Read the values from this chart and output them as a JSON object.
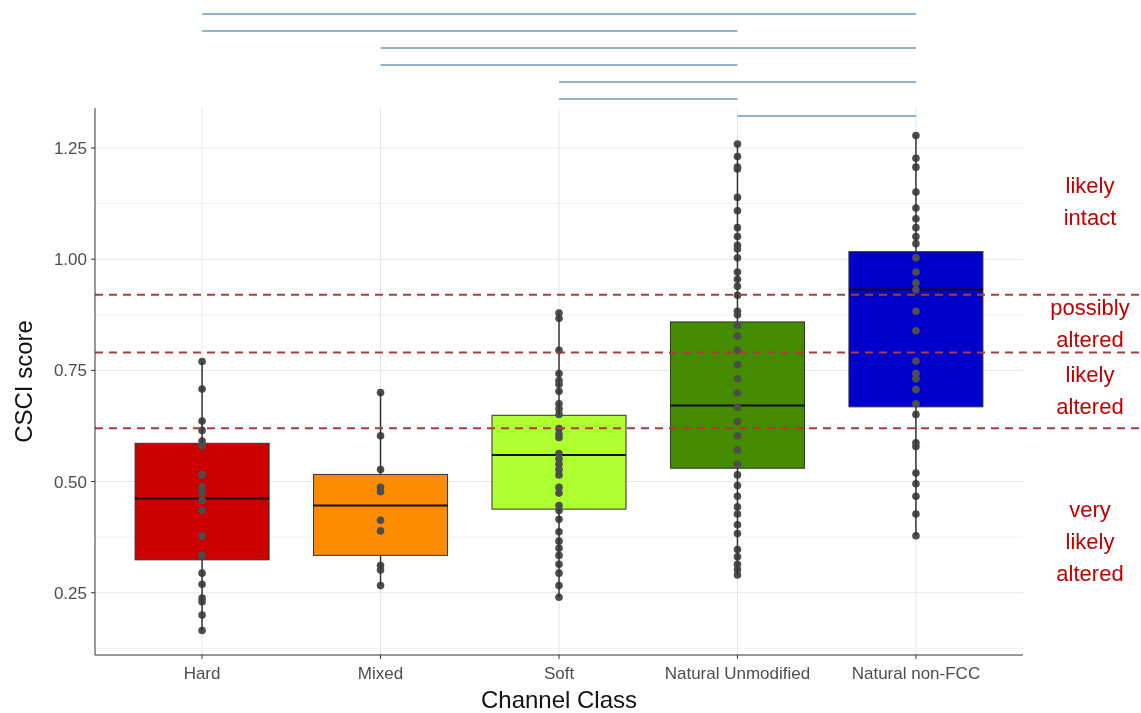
{
  "chart_data": {
    "type": "box",
    "xlabel": "Channel Class",
    "ylabel": "CSCI score",
    "categories": [
      "Hard",
      "Mixed",
      "Soft",
      "Natural Unmodified",
      "Natural non-FCC"
    ],
    "colors": [
      "#cc0000",
      "#ff8c00",
      "#adff2f",
      "#458b00",
      "#0000cd"
    ],
    "boxes": [
      {
        "low": 0.165,
        "q1": 0.324,
        "median": 0.462,
        "q3": 0.586,
        "high": 0.77
      },
      {
        "low": 0.266,
        "q1": 0.334,
        "median": 0.446,
        "q3": 0.516,
        "high": 0.7
      },
      {
        "low": 0.24,
        "q1": 0.438,
        "median": 0.56,
        "q3": 0.649,
        "high": 0.879
      },
      {
        "low": 0.29,
        "q1": 0.53,
        "median": 0.671,
        "q3": 0.859,
        "high": 1.259
      },
      {
        "low": 0.378,
        "q1": 0.668,
        "median": 0.932,
        "q3": 1.017,
        "high": 1.278
      }
    ],
    "series": [
      {
        "type": "scatter",
        "color": "#4d4d4d",
        "x": [
          "Hard",
          "Hard",
          "Hard",
          "Hard",
          "Hard",
          "Hard",
          "Hard",
          "Hard",
          "Hard",
          "Hard",
          "Hard",
          "Hard",
          "Hard",
          "Hard",
          "Hard",
          "Hard",
          "Hard",
          "Hard",
          "Hard",
          "Mixed",
          "Mixed",
          "Mixed",
          "Mixed",
          "Mixed",
          "Mixed",
          "Mixed",
          "Mixed",
          "Mixed",
          "Mixed",
          "Soft",
          "Soft",
          "Soft",
          "Soft",
          "Soft",
          "Soft",
          "Soft",
          "Soft",
          "Soft",
          "Soft",
          "Soft",
          "Soft",
          "Soft",
          "Soft",
          "Soft",
          "Soft",
          "Soft",
          "Soft",
          "Soft",
          "Soft",
          "Soft",
          "Soft",
          "Soft",
          "Soft",
          "Soft",
          "Soft",
          "Soft",
          "Soft",
          "Soft",
          "Soft",
          "Soft",
          "Natural Unmodified",
          "Natural Unmodified",
          "Natural Unmodified",
          "Natural Unmodified",
          "Natural Unmodified",
          "Natural Unmodified",
          "Natural Unmodified",
          "Natural Unmodified",
          "Natural Unmodified",
          "Natural Unmodified",
          "Natural Unmodified",
          "Natural Unmodified",
          "Natural Unmodified",
          "Natural Unmodified",
          "Natural Unmodified",
          "Natural Unmodified",
          "Natural Unmodified",
          "Natural Unmodified",
          "Natural Unmodified",
          "Natural Unmodified",
          "Natural Unmodified",
          "Natural Unmodified",
          "Natural Unmodified",
          "Natural Unmodified",
          "Natural Unmodified",
          "Natural Unmodified",
          "Natural Unmodified",
          "Natural Unmodified",
          "Natural Unmodified",
          "Natural Unmodified",
          "Natural Unmodified",
          "Natural Unmodified",
          "Natural Unmodified",
          "Natural Unmodified",
          "Natural Unmodified",
          "Natural Unmodified",
          "Natural Unmodified",
          "Natural Unmodified",
          "Natural Unmodified",
          "Natural Unmodified",
          "Natural non-FCC",
          "Natural non-FCC",
          "Natural non-FCC",
          "Natural non-FCC",
          "Natural non-FCC",
          "Natural non-FCC",
          "Natural non-FCC",
          "Natural non-FCC",
          "Natural non-FCC",
          "Natural non-FCC",
          "Natural non-FCC",
          "Natural non-FCC",
          "Natural non-FCC",
          "Natural non-FCC",
          "Natural non-FCC",
          "Natural non-FCC",
          "Natural non-FCC",
          "Natural non-FCC",
          "Natural non-FCC",
          "Natural non-FCC",
          "Natural non-FCC",
          "Natural non-FCC",
          "Natural non-FCC",
          "Natural non-FCC",
          "Natural non-FCC",
          "Natural non-FCC",
          "Natural non-FCC",
          "Natural non-FCC"
        ],
        "values": [
          0.77,
          0.708,
          0.636,
          0.615,
          0.591,
          0.58,
          0.515,
          0.488,
          0.474,
          0.458,
          0.435,
          0.377,
          0.334,
          0.294,
          0.269,
          0.238,
          0.23,
          0.2,
          0.165,
          0.7,
          0.603,
          0.527,
          0.487,
          0.477,
          0.413,
          0.389,
          0.311,
          0.301,
          0.266,
          0.879,
          0.867,
          0.795,
          0.743,
          0.727,
          0.719,
          0.703,
          0.675,
          0.663,
          0.651,
          0.619,
          0.607,
          0.599,
          0.563,
          0.551,
          0.539,
          0.527,
          0.515,
          0.487,
          0.474,
          0.446,
          0.435,
          0.415,
          0.387,
          0.366,
          0.35,
          0.334,
          0.314,
          0.294,
          0.266,
          0.24,
          1.259,
          1.231,
          1.207,
          1.203,
          1.139,
          1.109,
          1.071,
          1.051,
          1.031,
          1.023,
          1.003,
          0.971,
          0.955,
          0.939,
          0.919,
          0.883,
          0.875,
          0.851,
          0.827,
          0.795,
          0.763,
          0.731,
          0.699,
          0.667,
          0.635,
          0.603,
          0.571,
          0.539,
          0.515,
          0.491,
          0.467,
          0.443,
          0.427,
          0.403,
          0.383,
          0.347,
          0.331,
          0.314,
          0.302,
          0.29,
          1.278,
          1.227,
          1.207,
          1.151,
          1.115,
          1.091,
          1.071,
          1.051,
          1.035,
          1.003,
          0.971,
          0.947,
          0.931,
          0.883,
          0.839,
          0.771,
          0.743,
          0.731,
          0.707,
          0.675,
          0.651,
          0.587,
          0.579,
          0.519,
          0.495,
          0.467,
          0.427,
          0.378
        ]
      }
    ],
    "marker": "circle",
    "ylim": [
      0.11,
      1.34
    ],
    "yticks": [
      0.25,
      {
        "value": 0.5,
        "label": "0.50"
      },
      {
        "value": 0.75,
        "label": "0.75"
      },
      {
        "value": 1,
        "label": "1.00"
      },
      1.25
    ],
    "grid": true,
    "ref_lines": [
      {
        "axis": "y",
        "value": 0.92,
        "color": "#b03a3a",
        "line_style": "dashed"
      },
      {
        "axis": "y",
        "value": 0.79,
        "color": "#b03a3a",
        "line_style": "dashed"
      },
      {
        "axis": "y",
        "value": 0.62,
        "color": "#b03a3a",
        "line_style": "dashed"
      }
    ],
    "annotations": [
      "likely intact",
      "possibly altered",
      "likely altered",
      "very likely altered"
    ]
  }
}
